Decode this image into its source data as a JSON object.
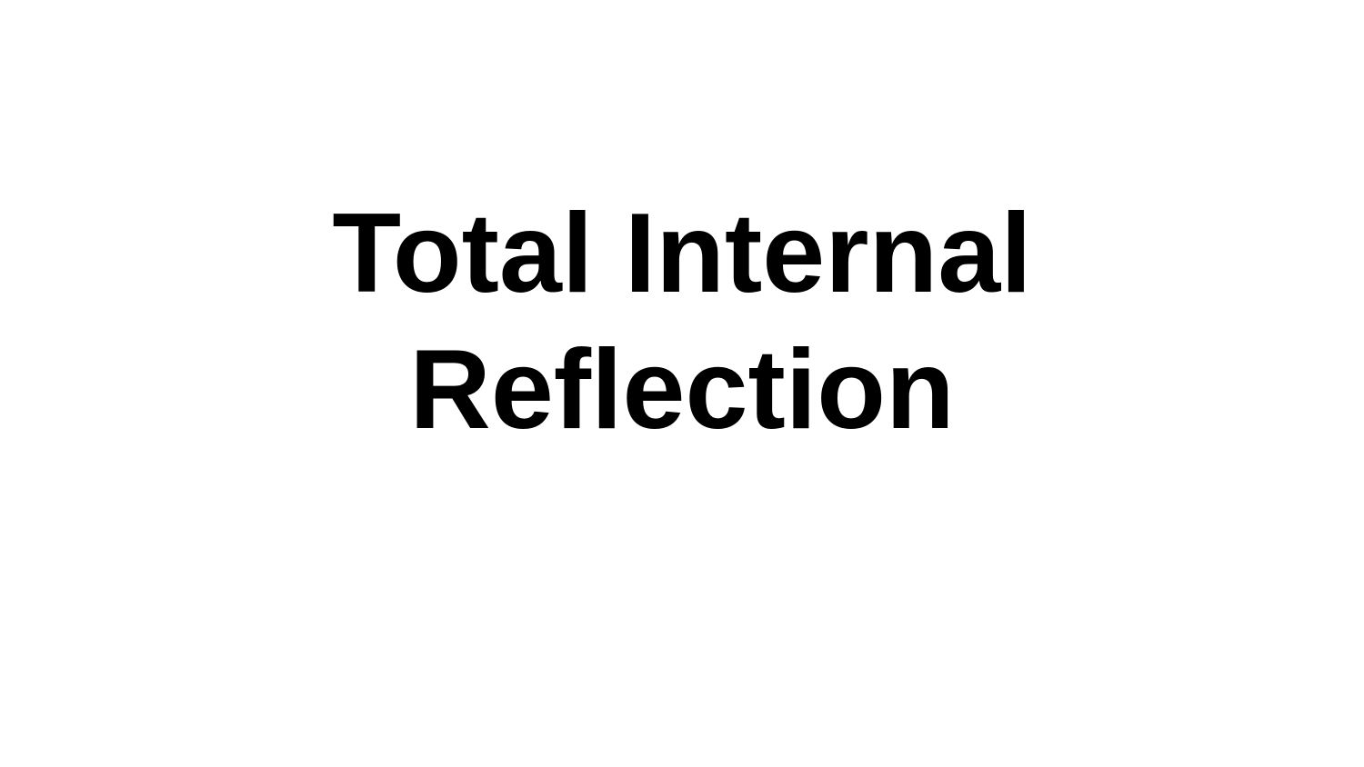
{
  "slide": {
    "title_lines": [
      "Total Internal",
      "Reflection"
    ]
  },
  "colors": {
    "background": "#ffffff",
    "text": "#000000"
  }
}
